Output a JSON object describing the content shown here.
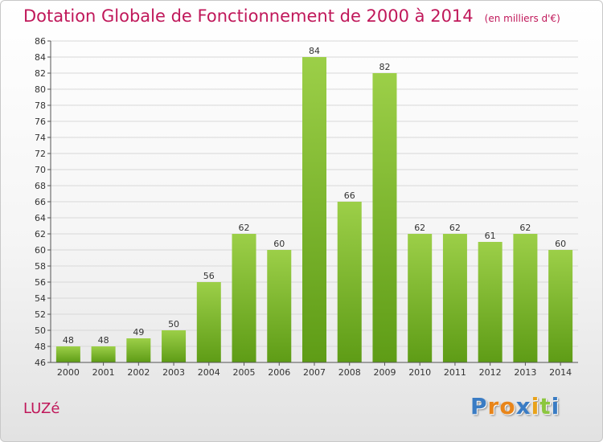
{
  "title": "Dotation Globale de Fonctionnement de 2000 à 2014",
  "subtitle": "(en milliers d'€)",
  "commune": "LUZé",
  "logo": {
    "letters": [
      "P",
      "r",
      "o",
      "x",
      "i",
      "t",
      "i"
    ],
    "colors": [
      "#3a7cc4",
      "#e8851a",
      "#e8851a",
      "#3a7cc4",
      "#e8a21a",
      "#8cc63f",
      "#3a7cc4"
    ]
  },
  "colors": {
    "title": "#c0185a",
    "bar_top": "#9ccf48",
    "bar_bottom": "#5e9c16",
    "grid": "#d8d8d8"
  },
  "chart_data": {
    "type": "bar",
    "title": "Dotation Globale de Fonctionnement de 2000 à 2014",
    "subtitle": "(en milliers d'€)",
    "categories": [
      "2000",
      "2001",
      "2002",
      "2003",
      "2004",
      "2005",
      "2006",
      "2007",
      "2008",
      "2009",
      "2010",
      "2011",
      "2012",
      "2013",
      "2014"
    ],
    "values": [
      48,
      48,
      49,
      50,
      56,
      62,
      60,
      84,
      66,
      82,
      62,
      62,
      61,
      62,
      60
    ],
    "ylim": [
      46,
      86
    ],
    "ytick_step": 2,
    "grid": true,
    "xlabel": "",
    "ylabel": ""
  }
}
